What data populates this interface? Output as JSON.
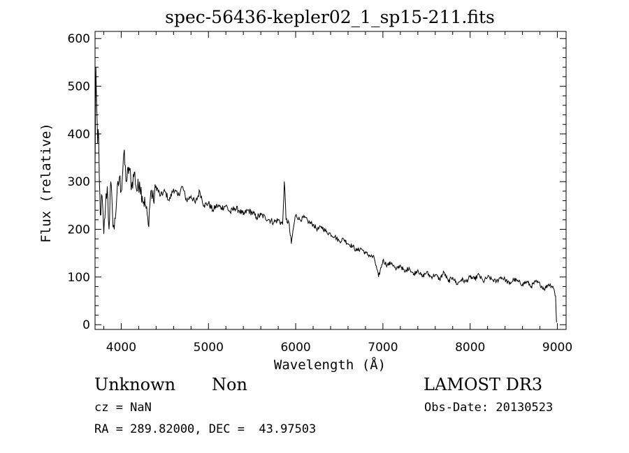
{
  "chart_data": {
    "type": "line",
    "title": "spec-56436-kepler02_1_sp15-211.fits",
    "xlabel": "Wavelength (Å)",
    "ylabel": "Flux (relative)",
    "xlim": [
      3700,
      9100
    ],
    "ylim": [
      -10,
      615
    ],
    "xticks": [
      4000,
      5000,
      6000,
      7000,
      8000,
      9000
    ],
    "yticks": [
      0,
      100,
      200,
      300,
      400,
      500,
      600
    ],
    "grid": false,
    "line_color": "#000000",
    "series": [
      {
        "points": [
          [
            3700,
            330
          ],
          [
            3710,
            540
          ],
          [
            3720,
            450
          ],
          [
            3730,
            380
          ],
          [
            3740,
            400
          ],
          [
            3750,
            300
          ],
          [
            3760,
            230
          ],
          [
            3780,
            270
          ],
          [
            3800,
            190
          ],
          [
            3820,
            250
          ],
          [
            3840,
            290
          ],
          [
            3860,
            200
          ],
          [
            3880,
            300
          ],
          [
            3900,
            230
          ],
          [
            3920,
            200
          ],
          [
            3950,
            270
          ],
          [
            3980,
            310
          ],
          [
            4000,
            280
          ],
          [
            4030,
            360
          ],
          [
            4060,
            300
          ],
          [
            4090,
            330
          ],
          [
            4120,
            290
          ],
          [
            4150,
            320
          ],
          [
            4180,
            280
          ],
          [
            4210,
            300
          ],
          [
            4240,
            270
          ],
          [
            4280,
            250
          ],
          [
            4310,
            210
          ],
          [
            4340,
            280
          ],
          [
            4370,
            260
          ],
          [
            4400,
            290
          ],
          [
            4450,
            270
          ],
          [
            4500,
            280
          ],
          [
            4550,
            260
          ],
          [
            4600,
            285
          ],
          [
            4650,
            270
          ],
          [
            4700,
            290
          ],
          [
            4750,
            260
          ],
          [
            4800,
            270
          ],
          [
            4850,
            255
          ],
          [
            4900,
            280
          ],
          [
            4950,
            250
          ],
          [
            5000,
            255
          ],
          [
            5050,
            240
          ],
          [
            5100,
            250
          ],
          [
            5150,
            245
          ],
          [
            5200,
            250
          ],
          [
            5250,
            235
          ],
          [
            5300,
            245
          ],
          [
            5350,
            240
          ],
          [
            5400,
            230
          ],
          [
            5450,
            240
          ],
          [
            5500,
            235
          ],
          [
            5550,
            225
          ],
          [
            5600,
            230
          ],
          [
            5650,
            225
          ],
          [
            5700,
            220
          ],
          [
            5750,
            215
          ],
          [
            5800,
            220
          ],
          [
            5850,
            210
          ],
          [
            5870,
            300
          ],
          [
            5890,
            220
          ],
          [
            5920,
            215
          ],
          [
            5950,
            170
          ],
          [
            5980,
            210
          ],
          [
            6000,
            230
          ],
          [
            6050,
            220
          ],
          [
            6100,
            225
          ],
          [
            6150,
            215
          ],
          [
            6200,
            210
          ],
          [
            6250,
            200
          ],
          [
            6300,
            205
          ],
          [
            6350,
            195
          ],
          [
            6400,
            190
          ],
          [
            6450,
            185
          ],
          [
            6500,
            175
          ],
          [
            6550,
            180
          ],
          [
            6600,
            170
          ],
          [
            6650,
            165
          ],
          [
            6700,
            155
          ],
          [
            6750,
            160
          ],
          [
            6800,
            150
          ],
          [
            6850,
            145
          ],
          [
            6900,
            140
          ],
          [
            6950,
            100
          ],
          [
            7000,
            135
          ],
          [
            7050,
            125
          ],
          [
            7100,
            130
          ],
          [
            7150,
            115
          ],
          [
            7200,
            125
          ],
          [
            7250,
            110
          ],
          [
            7300,
            120
          ],
          [
            7350,
            105
          ],
          [
            7400,
            115
          ],
          [
            7450,
            100
          ],
          [
            7500,
            110
          ],
          [
            7550,
            100
          ],
          [
            7600,
            105
          ],
          [
            7650,
            95
          ],
          [
            7700,
            110
          ],
          [
            7750,
            90
          ],
          [
            7800,
            100
          ],
          [
            7850,
            85
          ],
          [
            7900,
            95
          ],
          [
            7950,
            90
          ],
          [
            8000,
            100
          ],
          [
            8050,
            95
          ],
          [
            8100,
            105
          ],
          [
            8150,
            90
          ],
          [
            8200,
            100
          ],
          [
            8250,
            95
          ],
          [
            8300,
            90
          ],
          [
            8350,
            100
          ],
          [
            8400,
            95
          ],
          [
            8450,
            85
          ],
          [
            8500,
            95
          ],
          [
            8550,
            90
          ],
          [
            8600,
            85
          ],
          [
            8650,
            90
          ],
          [
            8700,
            80
          ],
          [
            8750,
            90
          ],
          [
            8800,
            85
          ],
          [
            8850,
            75
          ],
          [
            8900,
            85
          ],
          [
            8950,
            80
          ],
          [
            8980,
            60
          ],
          [
            8990,
            5
          ]
        ]
      }
    ],
    "annotations": {
      "object_class": "Unknown",
      "object_subclass": "Non",
      "survey": "LAMOST DR3",
      "cz": "cz = NaN",
      "obs_date": "Obs-Date: 20130523",
      "coords": "RA = 289.82000, DEC =  43.97503"
    }
  }
}
